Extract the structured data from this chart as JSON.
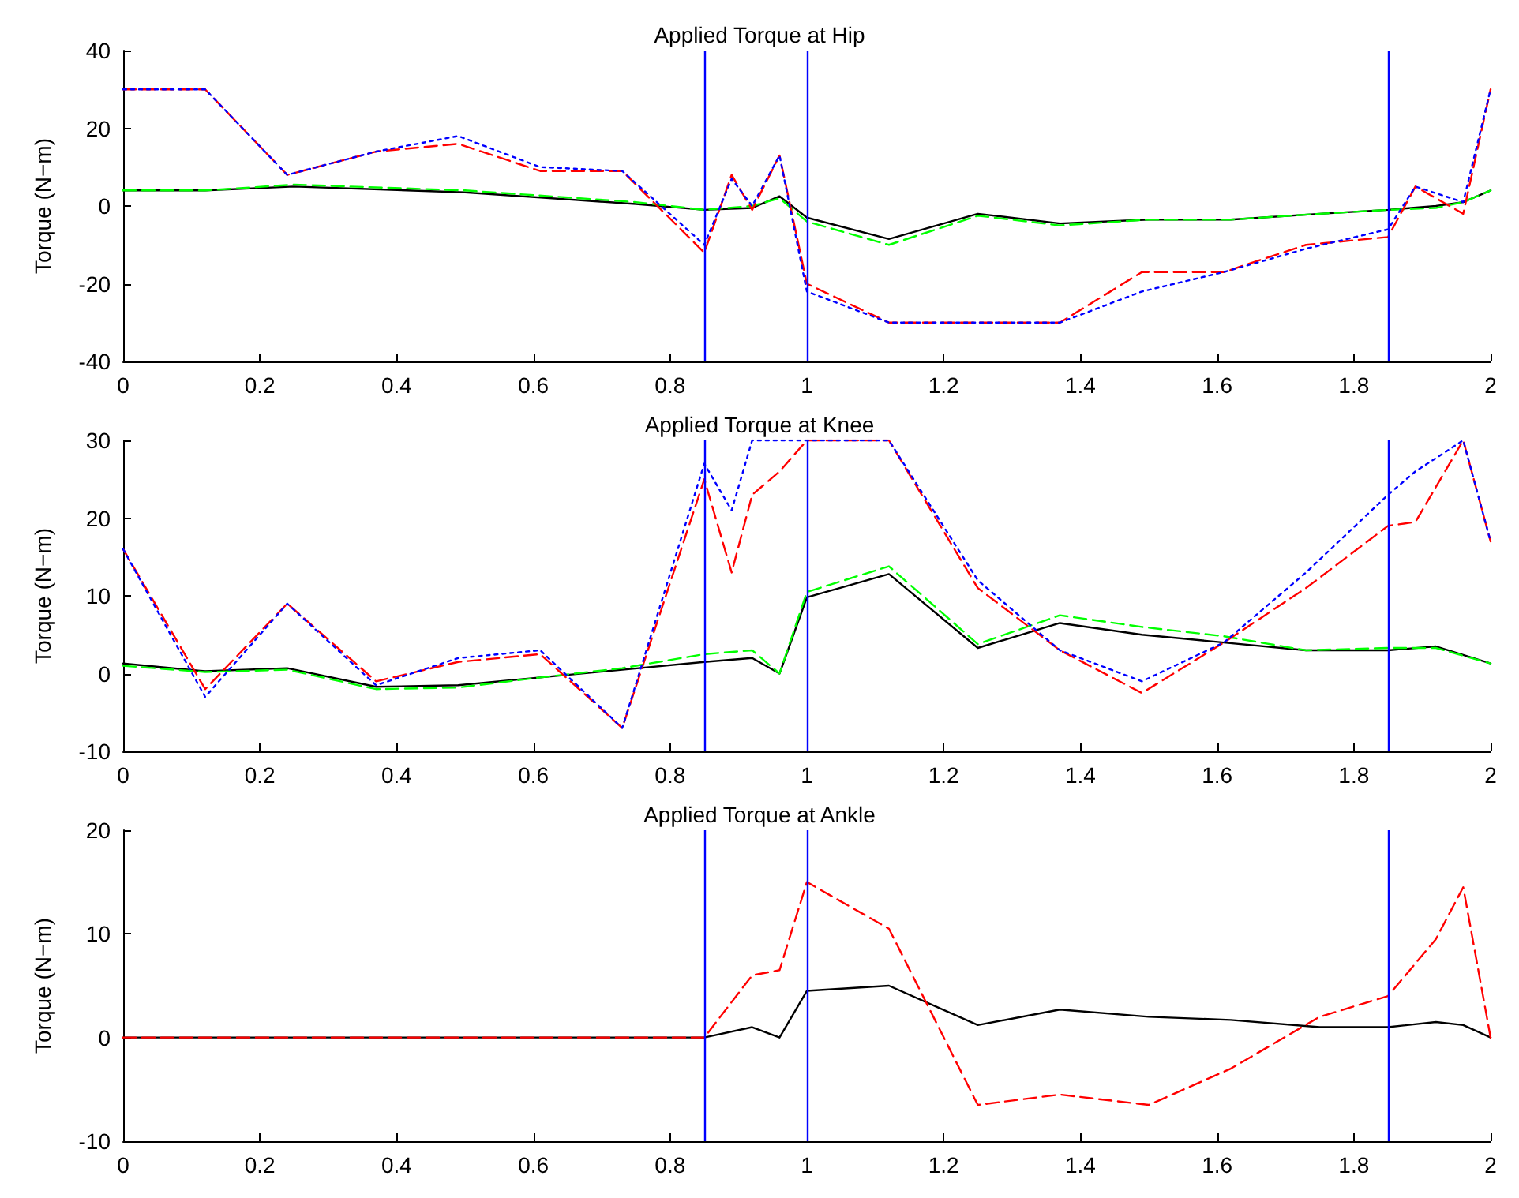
{
  "chart_data": [
    {
      "type": "line",
      "title": "Applied Torque at Hip",
      "ylabel": "Torque (N−m)",
      "xlim": [
        0,
        2
      ],
      "xticks": [
        0,
        0.2,
        0.4,
        0.6,
        0.8,
        1,
        1.2,
        1.4,
        1.6,
        1.8,
        2
      ],
      "ylim": [
        -40,
        40
      ],
      "yticks": [
        -40,
        -20,
        0,
        20,
        40
      ],
      "grid": false,
      "marker": "none",
      "ref_lines": [
        {
          "axis": "x",
          "value": 0.85,
          "color": "#0000ff"
        },
        {
          "axis": "x",
          "value": 1,
          "color": "#0000ff"
        },
        {
          "axis": "x",
          "value": 1.85,
          "color": "#0000ff"
        }
      ],
      "series": [
        {
          "color": "#000000",
          "line_style": "solid",
          "x": [
            0,
            0.12,
            0.25,
            0.5,
            0.75,
            0.85,
            0.92,
            0.96,
            1,
            1.12,
            1.25,
            1.37,
            1.5,
            1.62,
            1.75,
            1.85,
            1.92,
            1.96,
            2
          ],
          "values": [
            4,
            4,
            5,
            3.5,
            0.5,
            -1,
            -0.5,
            2.5,
            -3,
            -8.5,
            -2,
            -4.5,
            -3.5,
            -3.5,
            -2,
            -1,
            0,
            1,
            4
          ]
        },
        {
          "color": "#00ff00",
          "line_style": "dashed",
          "x": [
            0,
            0.12,
            0.25,
            0.5,
            0.75,
            0.85,
            0.92,
            0.96,
            1,
            1.12,
            1.25,
            1.37,
            1.5,
            1.62,
            1.75,
            1.85,
            1.92,
            1.96,
            2
          ],
          "values": [
            4,
            4,
            5.5,
            4,
            1,
            -1,
            0,
            2,
            -4,
            -10,
            -2.5,
            -5,
            -3.5,
            -3.5,
            -2,
            -1,
            -0.5,
            1,
            4
          ]
        },
        {
          "color": "#ff0000",
          "line_style": "dashed",
          "x": [
            0,
            0.12,
            0.24,
            0.37,
            0.49,
            0.61,
            0.73,
            0.85,
            0.89,
            0.92,
            0.96,
            1,
            1.12,
            1.25,
            1.37,
            1.49,
            1.61,
            1.73,
            1.85,
            1.89,
            1.96,
            2
          ],
          "values": [
            30,
            30,
            8,
            14,
            16,
            9,
            9,
            -12,
            8,
            -1,
            13,
            -20,
            -30,
            -30,
            -30,
            -17,
            -17,
            -10,
            -8,
            5,
            -2,
            30
          ]
        },
        {
          "color": "#0000ff",
          "line_style": "dotted",
          "x": [
            0,
            0.12,
            0.24,
            0.37,
            0.49,
            0.61,
            0.73,
            0.85,
            0.89,
            0.92,
            0.96,
            1,
            1.12,
            1.25,
            1.37,
            1.49,
            1.61,
            1.73,
            1.85,
            1.89,
            1.96,
            2
          ],
          "values": [
            30,
            30,
            8,
            14,
            18,
            10,
            9,
            -10,
            7,
            0,
            13,
            -22,
            -30,
            -30,
            -30,
            -22,
            -17,
            -11,
            -6,
            5,
            1,
            30
          ]
        }
      ]
    },
    {
      "type": "line",
      "title": "Applied Torque at Knee",
      "ylabel": "Torque (N−m)",
      "xlim": [
        0,
        2
      ],
      "xticks": [
        0,
        0.2,
        0.4,
        0.6,
        0.8,
        1,
        1.2,
        1.4,
        1.6,
        1.8,
        2
      ],
      "ylim": [
        -10,
        30
      ],
      "yticks": [
        -10,
        0,
        10,
        20,
        30
      ],
      "grid": false,
      "marker": "none",
      "ref_lines": [
        {
          "axis": "x",
          "value": 0.85,
          "color": "#0000ff"
        },
        {
          "axis": "x",
          "value": 1,
          "color": "#0000ff"
        },
        {
          "axis": "x",
          "value": 1.85,
          "color": "#0000ff"
        }
      ],
      "series": [
        {
          "color": "#000000",
          "line_style": "solid",
          "x": [
            0,
            0.12,
            0.24,
            0.37,
            0.49,
            0.61,
            0.73,
            0.85,
            0.92,
            0.96,
            1,
            1.12,
            1.25,
            1.37,
            1.49,
            1.61,
            1.73,
            1.85,
            1.92,
            2
          ],
          "values": [
            1.3,
            0.3,
            0.7,
            -1.7,
            -1.5,
            -0.5,
            0.5,
            1.5,
            2,
            0,
            9.8,
            12.8,
            3.3,
            6.5,
            5,
            4,
            3,
            3,
            3.5,
            1.3
          ]
        },
        {
          "color": "#00ff00",
          "line_style": "dashed",
          "x": [
            0,
            0.12,
            0.24,
            0.37,
            0.49,
            0.61,
            0.73,
            0.85,
            0.92,
            0.96,
            1,
            1.12,
            1.25,
            1.37,
            1.49,
            1.61,
            1.73,
            1.85,
            1.92,
            2
          ],
          "values": [
            1,
            0.2,
            0.5,
            -2,
            -1.8,
            -0.5,
            0.7,
            2.5,
            3,
            0,
            10.5,
            13.8,
            3.8,
            7.5,
            6,
            4.8,
            3,
            3.3,
            3.3,
            1.3
          ]
        },
        {
          "color": "#ff0000",
          "line_style": "dashed",
          "x": [
            0,
            0.12,
            0.24,
            0.37,
            0.49,
            0.61,
            0.73,
            0.85,
            0.89,
            0.92,
            0.96,
            1,
            1.12,
            1.25,
            1.37,
            1.49,
            1.61,
            1.73,
            1.85,
            1.89,
            1.96,
            2
          ],
          "values": [
            16,
            -2,
            9,
            -1,
            1.5,
            2.5,
            -7,
            25,
            13,
            23,
            26,
            30,
            30,
            11,
            3,
            -2.5,
            4,
            11,
            19,
            19.5,
            30,
            17
          ]
        },
        {
          "color": "#0000ff",
          "line_style": "dotted",
          "x": [
            0,
            0.12,
            0.24,
            0.37,
            0.49,
            0.61,
            0.73,
            0.85,
            0.89,
            0.92,
            0.96,
            1,
            1.12,
            1.25,
            1.37,
            1.49,
            1.61,
            1.73,
            1.85,
            1.89,
            1.96,
            2
          ],
          "values": [
            16,
            -3,
            9,
            -1.5,
            2,
            3,
            -7,
            27,
            21,
            30,
            30,
            30,
            30,
            12,
            3,
            -1,
            4,
            13,
            23,
            26,
            30,
            17
          ]
        }
      ]
    },
    {
      "type": "line",
      "title": "Applied Torque at Ankle",
      "ylabel": "Torque (N−m)",
      "xlim": [
        0,
        2
      ],
      "xticks": [
        0,
        0.2,
        0.4,
        0.6,
        0.8,
        1,
        1.2,
        1.4,
        1.6,
        1.8,
        2
      ],
      "ylim": [
        -10,
        20
      ],
      "yticks": [
        -10,
        0,
        10,
        20
      ],
      "grid": false,
      "marker": "none",
      "ref_lines": [
        {
          "axis": "x",
          "value": 0.85,
          "color": "#0000ff"
        },
        {
          "axis": "x",
          "value": 1,
          "color": "#0000ff"
        },
        {
          "axis": "x",
          "value": 1.85,
          "color": "#0000ff"
        }
      ],
      "series": [
        {
          "color": "#000000",
          "line_style": "solid",
          "x": [
            0,
            0.85,
            0.92,
            0.96,
            1,
            1.12,
            1.25,
            1.37,
            1.5,
            1.62,
            1.75,
            1.85,
            1.92,
            1.96,
            2
          ],
          "values": [
            0,
            0,
            1,
            0,
            4.5,
            5,
            1.2,
            2.7,
            2,
            1.7,
            1,
            1,
            1.5,
            1.2,
            0
          ]
        },
        {
          "color": "#ff0000",
          "line_style": "dashed",
          "x": [
            0,
            0.85,
            0.92,
            0.96,
            1,
            1.12,
            1.25,
            1.37,
            1.5,
            1.62,
            1.75,
            1.85,
            1.92,
            1.96,
            2
          ],
          "values": [
            0,
            0,
            6,
            6.5,
            15,
            10.5,
            -6.5,
            -5.5,
            -6.5,
            -3,
            2,
            4,
            9.5,
            14.5,
            0
          ]
        }
      ]
    }
  ]
}
